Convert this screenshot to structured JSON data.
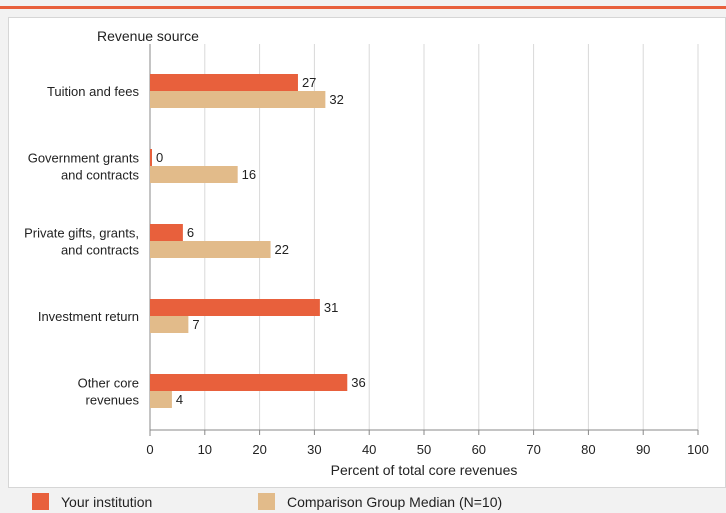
{
  "chart_data": {
    "type": "bar",
    "orientation": "horizontal",
    "category_axis_title": "Revenue source",
    "categories": [
      [
        "Tuition and fees"
      ],
      [
        "Government grants",
        "and contracts"
      ],
      [
        "Private gifts, grants,",
        "and contracts"
      ],
      [
        "Investment return"
      ],
      [
        "Other core",
        "revenues"
      ]
    ],
    "series": [
      {
        "name": "Your institution",
        "color": "#e8603c",
        "values": [
          27,
          0,
          6,
          31,
          36
        ]
      },
      {
        "name": "Comparison Group Median (N=10)",
        "color": "#e2bb8a",
        "values": [
          32,
          16,
          22,
          7,
          4
        ]
      }
    ],
    "xlabel": "Percent of total core revenues",
    "xlim": [
      0,
      100
    ],
    "xticks": [
      0,
      10,
      20,
      30,
      40,
      50,
      60,
      70,
      80,
      90,
      100
    ],
    "grid": true,
    "legend_position": "bottom"
  }
}
